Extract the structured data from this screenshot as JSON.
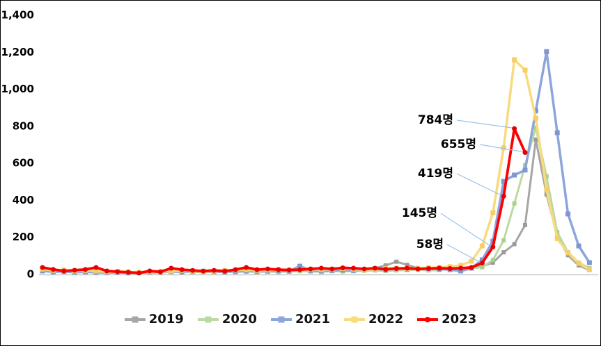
{
  "colors": {
    "axis_line": "#C9C9C9",
    "tick_text": "#000000",
    "annotation_text": "#000000",
    "leader_line": "#9DC3E6",
    "background": "#FFFFFF",
    "frame_border": "#000000"
  },
  "y_axis": {
    "tick_labels": [
      "0",
      "200",
      "400",
      "600",
      "800",
      "1,000",
      "1,200",
      "1,400"
    ],
    "min": 0,
    "max": 1400,
    "step": 200
  },
  "legend": {
    "items": [
      {
        "label": "2019",
        "color": "#A6A6A6",
        "marker": "square"
      },
      {
        "label": "2020",
        "color": "#BBD9A2",
        "marker": "square"
      },
      {
        "label": "2021",
        "color": "#8CA5DB",
        "marker": "square"
      },
      {
        "label": "2022",
        "color": "#F8DA7F",
        "marker": "square"
      },
      {
        "label": "2023",
        "color": "#FF0000",
        "marker": "circle"
      }
    ]
  },
  "annotations": [
    {
      "label": "784명",
      "value": 784,
      "week": 45
    },
    {
      "label": "655명",
      "value": 655,
      "week": 46
    },
    {
      "label": "419명",
      "value": 419,
      "week": 44
    },
    {
      "label": "145명",
      "value": 145,
      "week": 43
    },
    {
      "label": "58명",
      "value": 58,
      "week": 42
    }
  ],
  "chart_data": {
    "type": "line",
    "title": "",
    "xlabel": "",
    "ylabel": "",
    "x_unit": "week",
    "x": [
      1,
      2,
      3,
      4,
      5,
      6,
      7,
      8,
      9,
      10,
      11,
      12,
      13,
      14,
      15,
      16,
      17,
      18,
      19,
      20,
      21,
      22,
      23,
      24,
      25,
      26,
      27,
      28,
      29,
      30,
      31,
      32,
      33,
      34,
      35,
      36,
      37,
      38,
      39,
      40,
      41,
      42,
      43,
      44,
      45,
      46,
      47,
      48,
      49,
      50,
      51,
      52
    ],
    "ylim": [
      0,
      1400
    ],
    "grid": false,
    "legend_position": "bottom",
    "series": [
      {
        "name": "2019",
        "color": "#A6A6A6",
        "marker_color": "#9B9B9B",
        "marker": "square",
        "values": [
          18,
          12,
          14,
          10,
          12,
          14,
          10,
          8,
          10,
          8,
          6,
          8,
          10,
          12,
          10,
          12,
          14,
          12,
          10,
          12,
          14,
          12,
          10,
          14,
          16,
          14,
          12,
          16,
          18,
          20,
          24,
          30,
          45,
          65,
          48,
          30,
          26,
          24,
          28,
          30,
          32,
          40,
          60,
          116,
          160,
          263,
          725,
          428,
          206,
          100,
          45,
          20
        ]
      },
      {
        "name": "2020",
        "color": "#BBD9A2",
        "marker_color": "#A9D18E",
        "marker": "square",
        "values": [
          20,
          14,
          16,
          12,
          14,
          10,
          8,
          10,
          6,
          5,
          8,
          6,
          10,
          12,
          10,
          8,
          10,
          12,
          14,
          12,
          10,
          12,
          10,
          12,
          14,
          12,
          10,
          14,
          12,
          14,
          16,
          18,
          15,
          18,
          20,
          22,
          18,
          20,
          25,
          28,
          30,
          35,
          75,
          180,
          380,
          586,
          790,
          526,
          225,
          116,
          60,
          30
        ]
      },
      {
        "name": "2021",
        "color": "#8CA5DB",
        "marker_color": "#7E97D0",
        "marker": "square",
        "values": [
          15,
          10,
          12,
          8,
          10,
          8,
          6,
          8,
          5,
          6,
          8,
          10,
          12,
          10,
          12,
          14,
          12,
          10,
          12,
          15,
          12,
          14,
          16,
          14,
          41,
          18,
          15,
          18,
          20,
          18,
          22,
          25,
          22,
          28,
          25,
          30,
          28,
          25,
          22,
          15,
          30,
          75,
          176,
          499,
          533,
          560,
          880,
          1200,
          762,
          323,
          150,
          60
        ]
      },
      {
        "name": "2022",
        "color": "#F8DA7F",
        "marker_color": "#F5CE68",
        "marker": "square",
        "values": [
          25,
          18,
          20,
          15,
          18,
          15,
          10,
          12,
          10,
          8,
          10,
          12,
          15,
          18,
          15,
          12,
          15,
          18,
          20,
          22,
          18,
          20,
          22,
          20,
          22,
          25,
          22,
          25,
          28,
          25,
          22,
          25,
          28,
          30,
          28,
          30,
          32,
          35,
          38,
          45,
          68,
          150,
          330,
          680,
          1156,
          1100,
          840,
          455,
          190,
          113,
          56,
          23
        ]
      },
      {
        "name": "2023",
        "color": "#FF0000",
        "marker_color": "#E60000",
        "marker": "circle",
        "values": [
          34,
          23,
          15,
          19,
          23,
          34,
          15,
          11,
          8,
          4,
          15,
          10,
          30,
          22,
          18,
          14,
          18,
          14,
          22,
          34,
          22,
          26,
          22,
          20,
          22,
          26,
          30,
          26,
          32,
          30,
          26,
          30,
          24,
          28,
          30,
          26,
          28,
          30,
          28,
          30,
          34,
          58,
          145,
          419,
          784,
          655
        ]
      }
    ]
  }
}
